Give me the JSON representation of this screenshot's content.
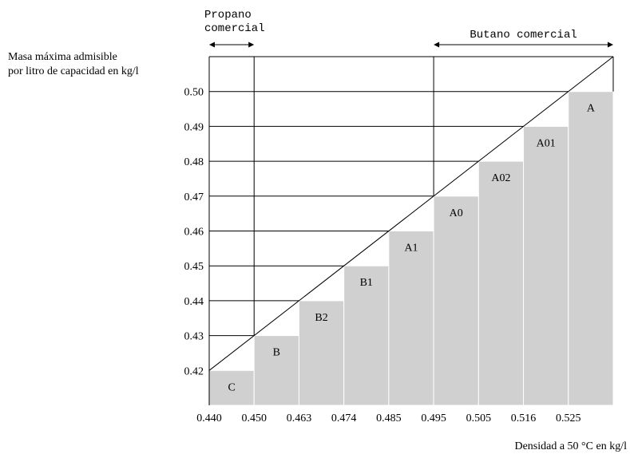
{
  "chart_data": {
    "type": "bar",
    "title": "",
    "ylabel_lines": [
      "Masa máxima admisible",
      "por litro de capacidad en kg/l"
    ],
    "xlabel": "Densidad a 50 °C en kg/l",
    "x_ticks": [
      "0.440",
      "0.450",
      "0.463",
      "0.474",
      "0.485",
      "0.495",
      "0.505",
      "0.516",
      "0.525"
    ],
    "y_ticks": [
      "0.42",
      "0.43",
      "0.44",
      "0.45",
      "0.46",
      "0.47",
      "0.48",
      "0.49",
      "0.50"
    ],
    "ylim": [
      0.41,
      0.51
    ],
    "bars": [
      {
        "label": "C",
        "x_start": "0.440",
        "value": 0.42
      },
      {
        "label": "B",
        "x_start": "0.450",
        "value": 0.43
      },
      {
        "label": "B2",
        "x_start": "0.463",
        "value": 0.44
      },
      {
        "label": "B1",
        "x_start": "0.474",
        "value": 0.45
      },
      {
        "label": "A1",
        "x_start": "0.485",
        "value": 0.46
      },
      {
        "label": "A0",
        "x_start": "0.495",
        "value": 0.47
      },
      {
        "label": "A02",
        "x_start": "0.505",
        "value": 0.48
      },
      {
        "label": "A01",
        "x_start": "0.516",
        "value": 0.49
      },
      {
        "label": "A",
        "x_start": "0.525",
        "value": 0.5
      }
    ],
    "annotations": {
      "propano_lines": [
        "Propano",
        "comercial"
      ],
      "butano": "Butano comercial"
    },
    "bar_color": "#d0d0d0",
    "line_color": "#000000",
    "grid": true
  }
}
